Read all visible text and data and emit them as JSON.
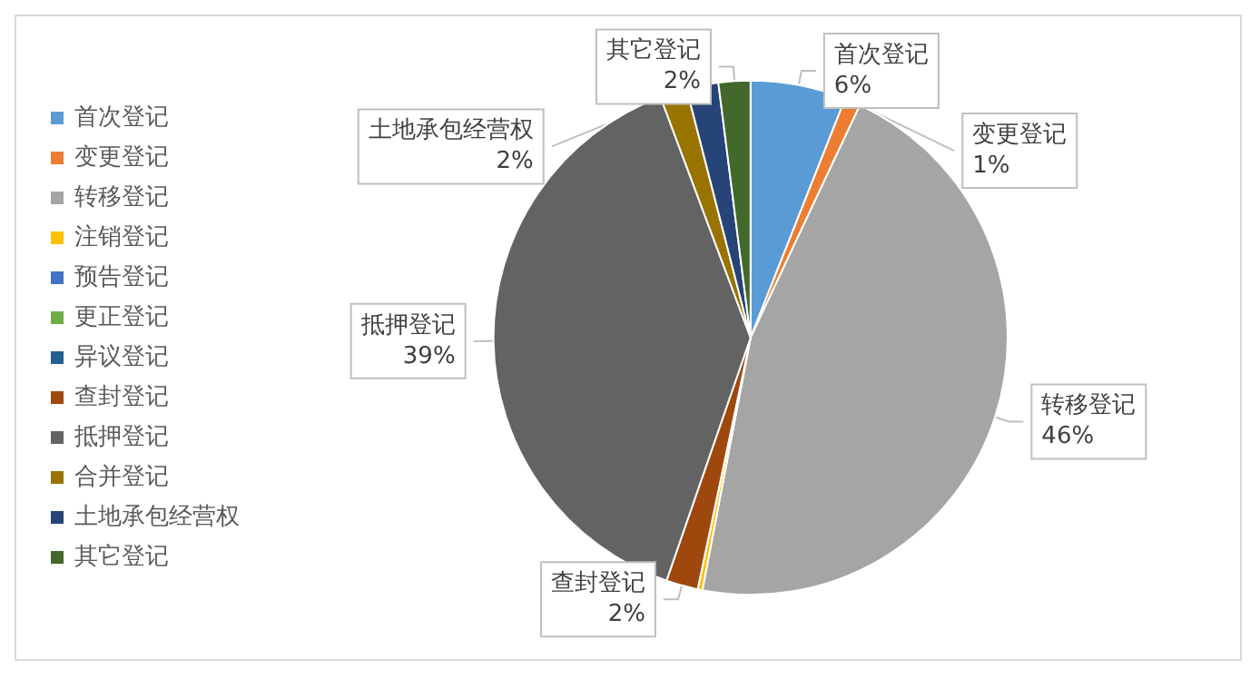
{
  "chart_data": {
    "type": "pie",
    "categories": [
      "首次登记",
      "变更登记",
      "转移登记",
      "注销登记",
      "预告登记",
      "更正登记",
      "异议登记",
      "查封登记",
      "抵押登记",
      "合并登记",
      "土地承包经营权",
      "其它登记"
    ],
    "values": [
      6,
      1,
      46,
      0.3,
      0,
      0,
      0,
      2,
      39,
      1.7,
      2,
      2
    ],
    "colors": [
      "#5b9bd5",
      "#ed7d31",
      "#a5a5a5",
      "#ffc000",
      "#4472c4",
      "#70ad47",
      "#255e91",
      "#9e480e",
      "#636363",
      "#997300",
      "#264478",
      "#43682b"
    ],
    "value_labels": [
      "6%",
      "1%",
      "46%",
      null,
      null,
      null,
      null,
      "2%",
      "39%",
      null,
      "2%",
      "2%"
    ],
    "legend": "left"
  }
}
